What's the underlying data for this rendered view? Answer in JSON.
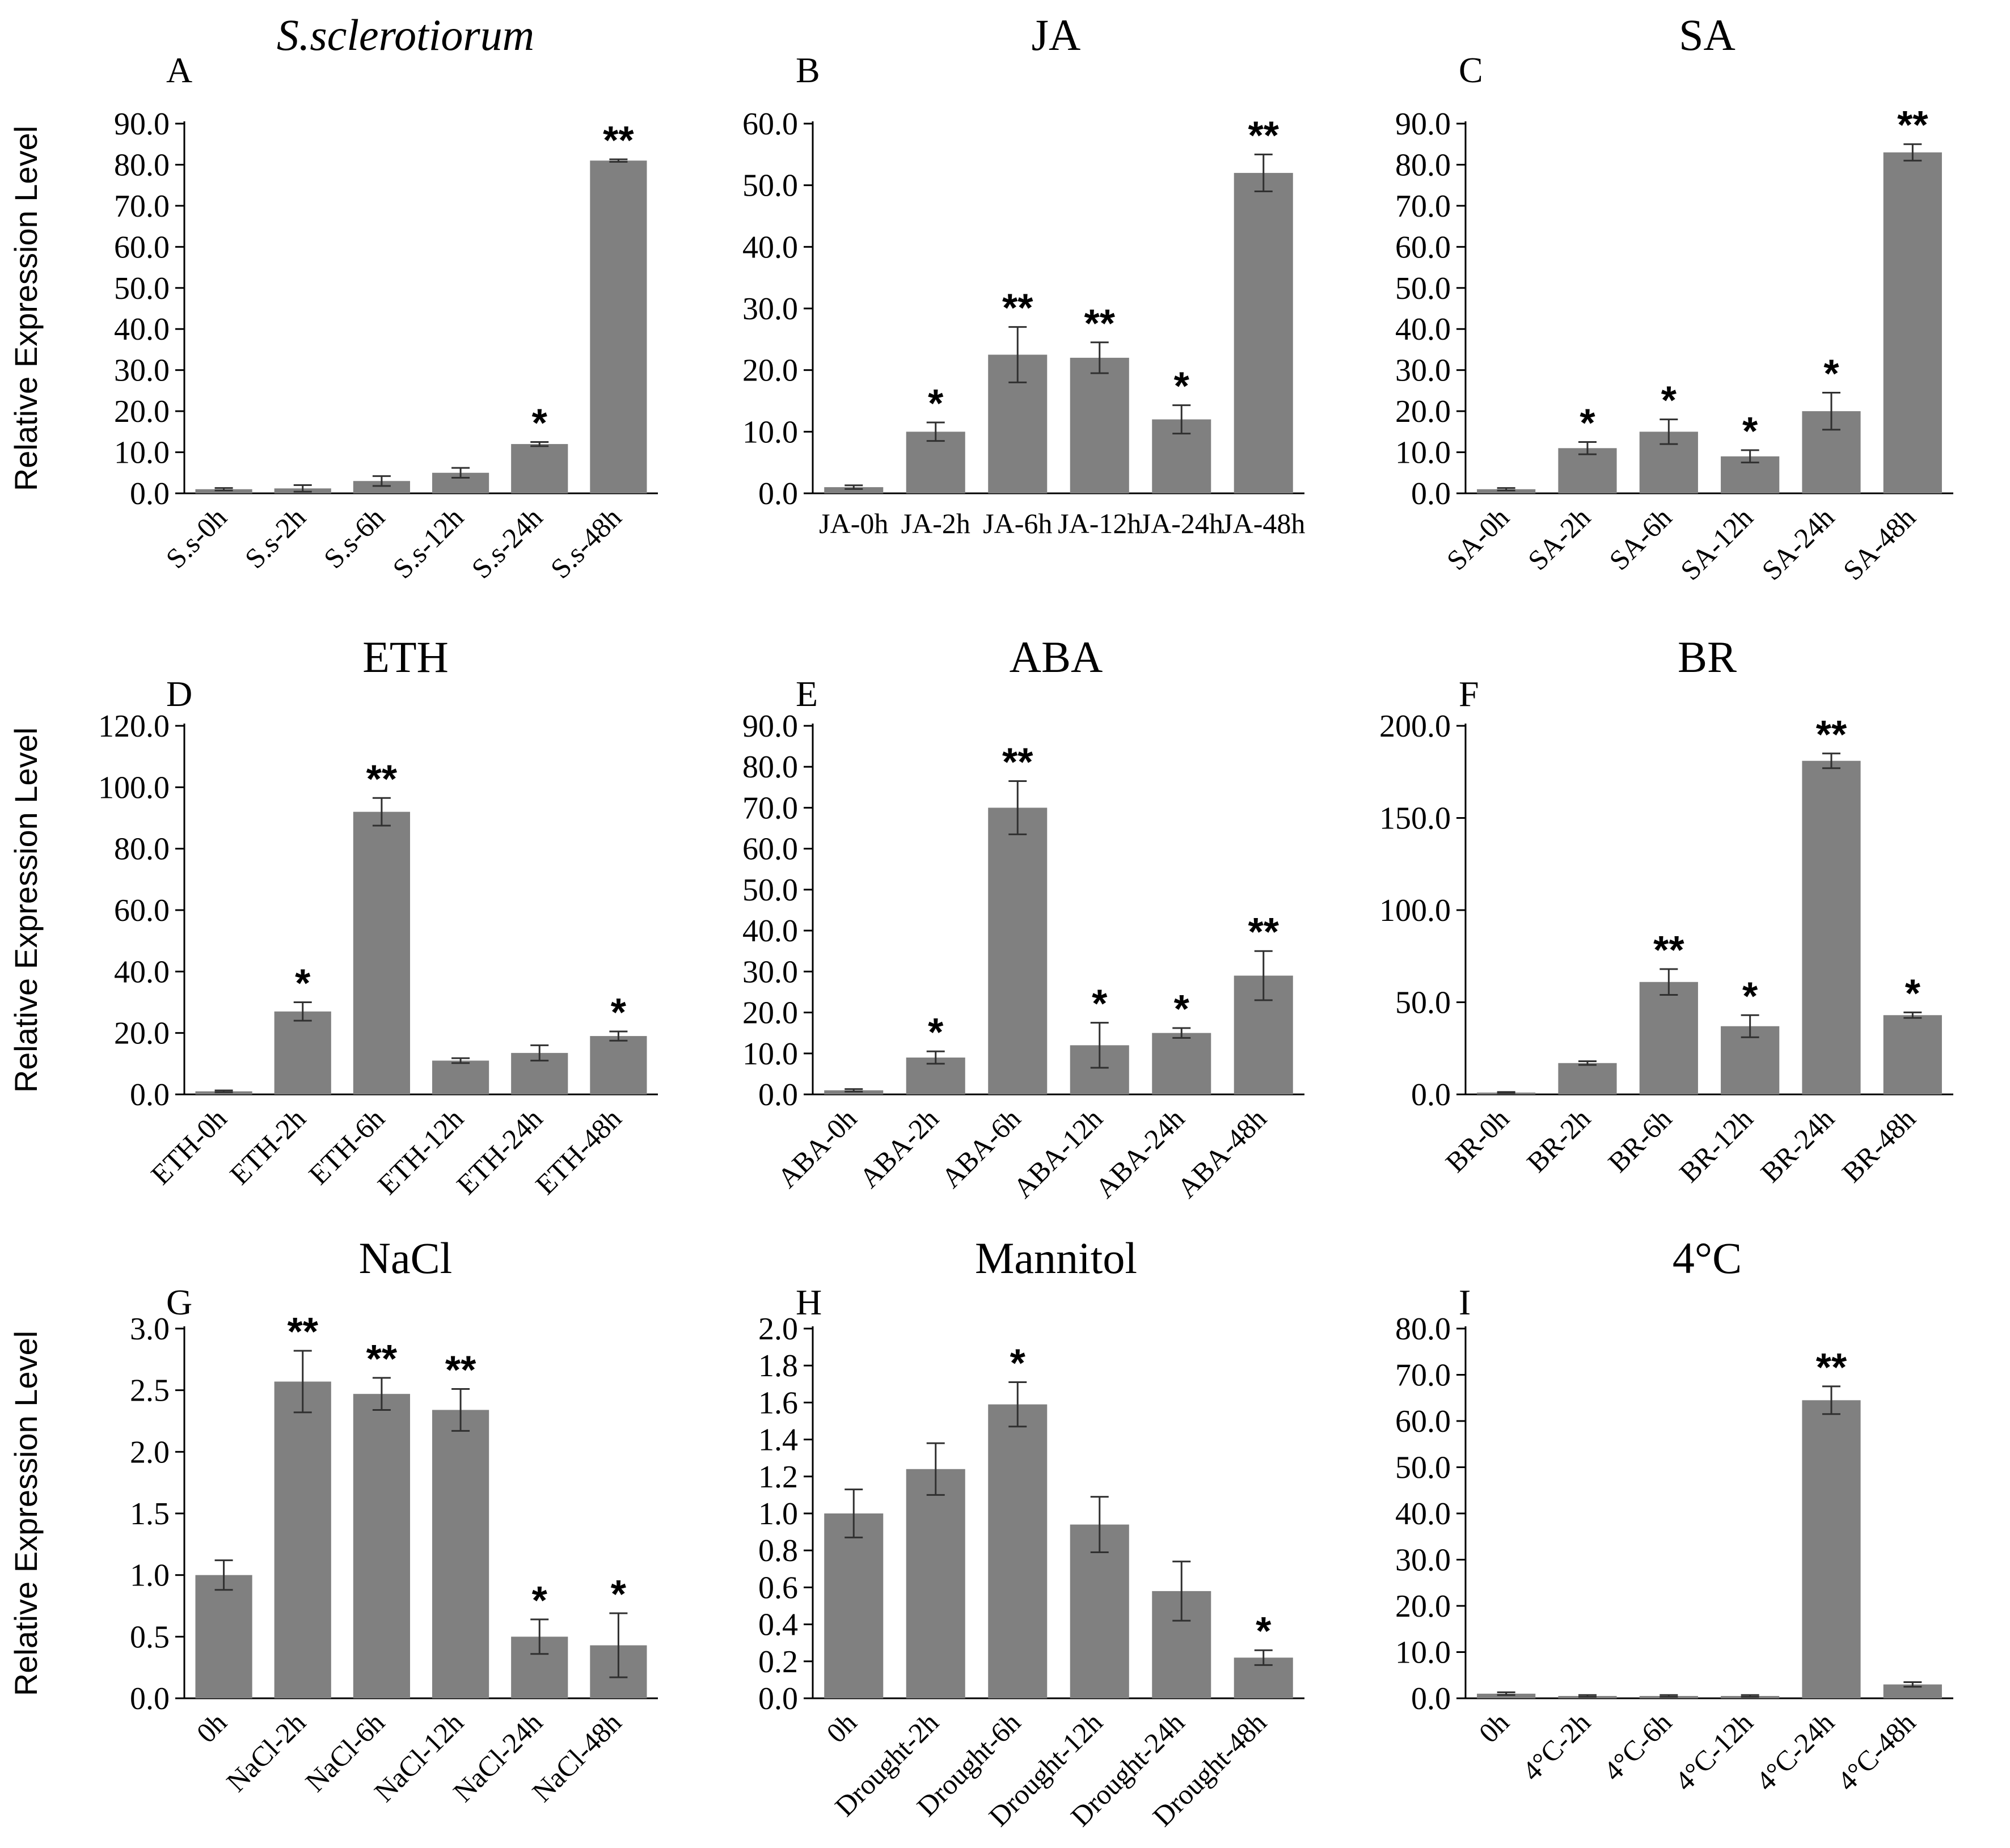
{
  "figure": {
    "y_axis_label": "Relative Expression Level",
    "colors": {
      "bar": "#808080",
      "axis": "#000000",
      "text": "#000000"
    }
  },
  "chart_data": [
    {
      "panel": "A",
      "title": "S.sclerotiorum",
      "title_italic": true,
      "type": "bar",
      "ylabel": "Relative Expression Level",
      "categories": [
        "S.s-0h",
        "S.s-2h",
        "S.s-6h",
        "S.s-12h",
        "S.s-24h",
        "S.s-48h"
      ],
      "values": [
        1.0,
        1.2,
        3.0,
        5.0,
        12.0,
        81.0
      ],
      "errors": [
        0.3,
        0.8,
        1.2,
        1.2,
        0.5,
        0.3
      ],
      "significance": [
        "",
        "",
        "",
        "",
        "*",
        "**"
      ],
      "yticks": [
        "0.0",
        "10.0",
        "20.0",
        "30.0",
        "40.0",
        "50.0",
        "60.0",
        "70.0",
        "80.0",
        "90.0"
      ],
      "ylim": [
        0,
        90
      ],
      "x_tick_rotation": -45
    },
    {
      "panel": "B",
      "title": "JA",
      "title_italic": false,
      "type": "bar",
      "ylabel": "",
      "categories": [
        "JA-0h",
        "JA-2h",
        "JA-6h",
        "JA-12h",
        "JA-24h",
        "JA-48h"
      ],
      "values": [
        1.0,
        10.0,
        22.5,
        22.0,
        12.0,
        52.0
      ],
      "errors": [
        0.3,
        1.5,
        4.5,
        2.5,
        2.3,
        3.0
      ],
      "significance": [
        "",
        "*",
        "**",
        "**",
        "*",
        "**"
      ],
      "yticks": [
        "0.0",
        "10.0",
        "20.0",
        "30.0",
        "40.0",
        "50.0",
        "60.0"
      ],
      "ylim": [
        0,
        60
      ],
      "x_tick_rotation": 0
    },
    {
      "panel": "C",
      "title": "SA",
      "title_italic": false,
      "type": "bar",
      "ylabel": "",
      "categories": [
        "SA-0h",
        "SA-2h",
        "SA-6h",
        "SA-12h",
        "SA-24h",
        "SA-48h"
      ],
      "values": [
        1.0,
        11.0,
        15.0,
        9.0,
        20.0,
        83.0
      ],
      "errors": [
        0.3,
        1.5,
        3.0,
        1.5,
        4.5,
        2.0
      ],
      "significance": [
        "",
        "*",
        "*",
        "*",
        "*",
        "**"
      ],
      "yticks": [
        "0.0",
        "10.0",
        "20.0",
        "30.0",
        "40.0",
        "50.0",
        "60.0",
        "70.0",
        "80.0",
        "90.0"
      ],
      "ylim": [
        0,
        90
      ],
      "x_tick_rotation": -45
    },
    {
      "panel": "D",
      "title": "ETH",
      "title_italic": false,
      "type": "bar",
      "ylabel": "Relative Expression Level",
      "categories": [
        "ETH-0h",
        "ETH-2h",
        "ETH-6h",
        "ETH-12h",
        "ETH-24h",
        "ETH-48h"
      ],
      "values": [
        1.0,
        27.0,
        92.0,
        11.0,
        13.5,
        19.0
      ],
      "errors": [
        0.3,
        3.0,
        4.5,
        0.8,
        2.5,
        1.5
      ],
      "significance": [
        "",
        "*",
        "**",
        "",
        "",
        "*"
      ],
      "yticks": [
        "0.0",
        "20.0",
        "40.0",
        "60.0",
        "80.0",
        "100.0",
        "120.0"
      ],
      "ylim": [
        0,
        120
      ],
      "x_tick_rotation": -45
    },
    {
      "panel": "E",
      "title": "ABA",
      "title_italic": false,
      "type": "bar",
      "ylabel": "",
      "categories": [
        "ABA-0h",
        "ABA-2h",
        "ABA-6h",
        "ABA-12h",
        "ABA-24h",
        "ABA-48h"
      ],
      "values": [
        1.0,
        9.0,
        70.0,
        12.0,
        15.0,
        29.0
      ],
      "errors": [
        0.3,
        1.5,
        6.5,
        5.5,
        1.2,
        6.0
      ],
      "significance": [
        "",
        "*",
        "**",
        "*",
        "*",
        "**"
      ],
      "yticks": [
        "0.0",
        "10.0",
        "20.0",
        "30.0",
        "40.0",
        "50.0",
        "60.0",
        "70.0",
        "80.0",
        "90.0"
      ],
      "ylim": [
        0,
        90
      ],
      "x_tick_rotation": -45
    },
    {
      "panel": "F",
      "title": "BR",
      "title_italic": false,
      "type": "bar",
      "ylabel": "",
      "categories": [
        "BR-0h",
        "BR-2h",
        "BR-6h",
        "BR-12h",
        "BR-24h",
        "BR-48h"
      ],
      "values": [
        1.0,
        17.0,
        61.0,
        37.0,
        181.0,
        43.0
      ],
      "errors": [
        0.3,
        1.0,
        7.0,
        6.0,
        4.0,
        1.5
      ],
      "significance": [
        "",
        "",
        "**",
        "*",
        "**",
        "*"
      ],
      "yticks": [
        "0.0",
        "50.0",
        "100.0",
        "150.0",
        "200.0"
      ],
      "ylim": [
        0,
        200
      ],
      "x_tick_rotation": -45
    },
    {
      "panel": "G",
      "title": "NaCl",
      "title_italic": false,
      "type": "bar",
      "ylabel": "Relative Expression Level",
      "categories": [
        "0h",
        "NaCl-2h",
        "NaCl-6h",
        "NaCl-12h",
        "NaCl-24h",
        "NaCl-48h"
      ],
      "values": [
        1.0,
        2.57,
        2.47,
        2.34,
        0.5,
        0.43
      ],
      "errors": [
        0.12,
        0.25,
        0.13,
        0.17,
        0.14,
        0.26
      ],
      "significance": [
        "",
        "**",
        "**",
        "**",
        "*",
        "*"
      ],
      "yticks": [
        "0.0",
        "0.5",
        "1.0",
        "1.5",
        "2.0",
        "2.5",
        "3.0"
      ],
      "ylim": [
        0,
        3
      ],
      "x_tick_rotation": -45
    },
    {
      "panel": "H",
      "title": "Mannitol",
      "title_italic": false,
      "type": "bar",
      "ylabel": "",
      "categories": [
        "0h",
        "Drought-2h",
        "Drought-6h",
        "Drought-12h",
        "Drought-24h",
        "Drought-48h"
      ],
      "values": [
        1.0,
        1.24,
        1.59,
        0.94,
        0.58,
        0.22
      ],
      "errors": [
        0.13,
        0.14,
        0.12,
        0.15,
        0.16,
        0.04
      ],
      "significance": [
        "",
        "",
        "*",
        "",
        "",
        "*"
      ],
      "yticks": [
        "0.0",
        "0.2",
        "0.4",
        "0.6",
        "0.8",
        "1.0",
        "1.2",
        "1.4",
        "1.6",
        "1.8",
        "2.0"
      ],
      "ylim": [
        0,
        2
      ],
      "x_tick_rotation": -45
    },
    {
      "panel": "I",
      "title": "4°C",
      "title_italic": false,
      "type": "bar",
      "ylabel": "",
      "categories": [
        "0h",
        "4°C-2h",
        "4°C-6h",
        "4°C-12h",
        "4°C-24h",
        "4°C-48h"
      ],
      "values": [
        1.0,
        0.5,
        0.5,
        0.5,
        64.5,
        3.0
      ],
      "errors": [
        0.3,
        0.2,
        0.2,
        0.2,
        3.0,
        0.5
      ],
      "significance": [
        "",
        "",
        "",
        "",
        "**",
        ""
      ],
      "yticks": [
        "0.0",
        "10.0",
        "20.0",
        "30.0",
        "40.0",
        "50.0",
        "60.0",
        "70.0",
        "80.0"
      ],
      "ylim": [
        0,
        80
      ],
      "x_tick_rotation": -45
    }
  ]
}
